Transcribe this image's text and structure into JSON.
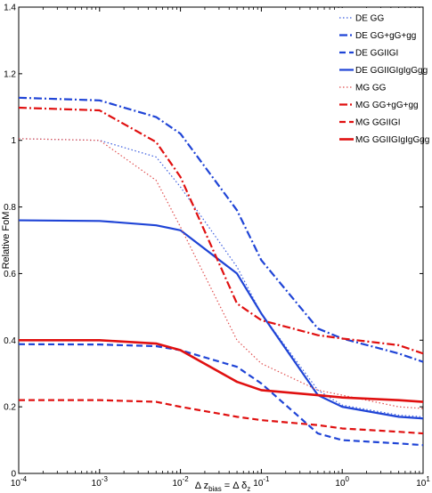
{
  "chart_data": {
    "type": "line",
    "xscale": "log",
    "xlim": [
      0.0001,
      10
    ],
    "ylim": [
      0,
      1.4
    ],
    "xlabel": "Δ z_bias = Δ δ_z",
    "ylabel": "Relative FoM",
    "yticks": [
      "0",
      "0.2",
      "0.4",
      "0.6",
      "0.8",
      "1",
      "1.2",
      "1.4"
    ],
    "xticks": [
      {
        "base": "10",
        "exp": "-4"
      },
      {
        "base": "10",
        "exp": "-3"
      },
      {
        "base": "10",
        "exp": "-2"
      },
      {
        "base": "10",
        "exp": "-1"
      },
      {
        "base": "10",
        "exp": "0"
      },
      {
        "base": "10",
        "exp": "1"
      }
    ],
    "legend_position": "top-right",
    "grid": false,
    "x": [
      0.0001,
      0.001,
      0.005,
      0.01,
      0.05,
      0.1,
      0.5,
      1,
      5,
      10
    ],
    "series": [
      {
        "name": "DE GG",
        "color": "#3d5fe0",
        "style": "dotted",
        "width": 1.2,
        "values": [
          1.005,
          1.0,
          0.95,
          0.86,
          0.62,
          0.48,
          0.25,
          0.205,
          0.175,
          0.17
        ]
      },
      {
        "name": "DE GG+gG+gg",
        "color": "#1f44d6",
        "style": "dashdot",
        "width": 2.2,
        "values": [
          1.128,
          1.12,
          1.07,
          1.02,
          0.79,
          0.64,
          0.435,
          0.405,
          0.36,
          0.335
        ]
      },
      {
        "name": "DE GGIIGI",
        "color": "#1f44d6",
        "style": "dashed",
        "width": 2.2,
        "values": [
          0.388,
          0.387,
          0.382,
          0.37,
          0.32,
          0.27,
          0.12,
          0.1,
          0.09,
          0.085
        ]
      },
      {
        "name": "DE GGIIGIgIgGgg",
        "color": "#1f44d6",
        "style": "solid",
        "width": 2.2,
        "values": [
          0.76,
          0.758,
          0.745,
          0.73,
          0.6,
          0.48,
          0.235,
          0.2,
          0.17,
          0.165
        ]
      },
      {
        "name": "MG GG",
        "color": "#e05050",
        "style": "dotted",
        "width": 1.2,
        "values": [
          1.005,
          1.0,
          0.88,
          0.74,
          0.4,
          0.33,
          0.25,
          0.235,
          0.2,
          0.195
        ]
      },
      {
        "name": "MG GG+gG+gg",
        "color": "#e01010",
        "style": "dashdot",
        "width": 2.2,
        "values": [
          1.098,
          1.09,
          0.995,
          0.89,
          0.51,
          0.46,
          0.415,
          0.405,
          0.385,
          0.36
        ]
      },
      {
        "name": "MG GGIIGI",
        "color": "#e01010",
        "style": "dashed",
        "width": 2.2,
        "values": [
          0.22,
          0.22,
          0.215,
          0.2,
          0.17,
          0.16,
          0.145,
          0.135,
          0.125,
          0.12
        ]
      },
      {
        "name": "MG GGIIGIgIgGgg",
        "color": "#e01010",
        "style": "solid",
        "width": 2.6,
        "values": [
          0.4,
          0.4,
          0.39,
          0.37,
          0.275,
          0.25,
          0.235,
          0.228,
          0.22,
          0.215
        ]
      }
    ]
  }
}
